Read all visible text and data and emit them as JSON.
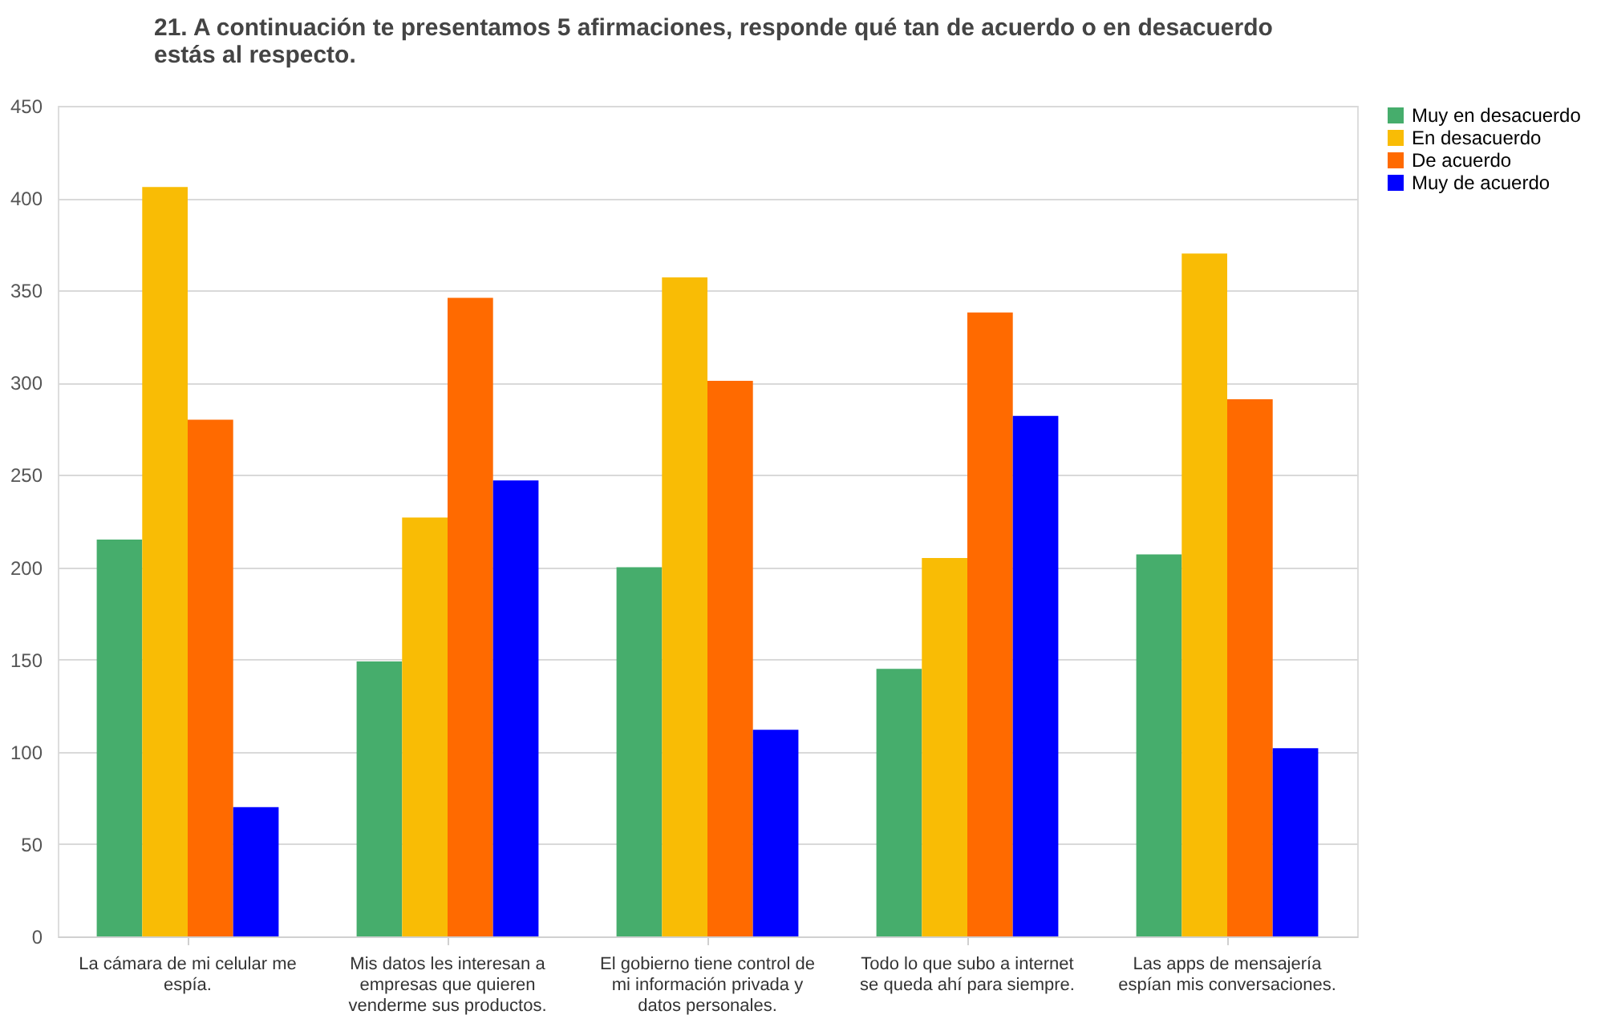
{
  "chart_data": {
    "type": "bar",
    "title": "21. A continuación te presentamos 5 afirmaciones, responde qué tan de acuerdo o en desacuerdo estás al respecto.",
    "categories": [
      "La cámara de mi celular me espía.",
      "Mis datos les interesan a empresas que quieren venderme sus productos.",
      "El gobierno tiene control de mi información privada y datos personales.",
      "Todo lo que subo a internet se queda ahí para siempre.",
      "Las apps de mensajería espían mis conversaciones."
    ],
    "series": [
      {
        "name": "Muy en desacuerdo",
        "color": "#46ad6c",
        "values": [
          215,
          149,
          200,
          145,
          207
        ]
      },
      {
        "name": "En desacuerdo",
        "color": "#f9bc05",
        "values": [
          406,
          227,
          357,
          205,
          370
        ]
      },
      {
        "name": "De acuerdo",
        "color": "#ff6a00",
        "values": [
          280,
          346,
          301,
          338,
          291
        ]
      },
      {
        "name": "Muy de acuerdo",
        "color": "#0000ff",
        "values": [
          70,
          247,
          112,
          282,
          102
        ]
      }
    ],
    "ylim": [
      0,
      450
    ],
    "yticks": [
      0,
      50,
      100,
      150,
      200,
      250,
      300,
      350,
      400,
      450
    ],
    "grid": "y",
    "legend": "right"
  }
}
